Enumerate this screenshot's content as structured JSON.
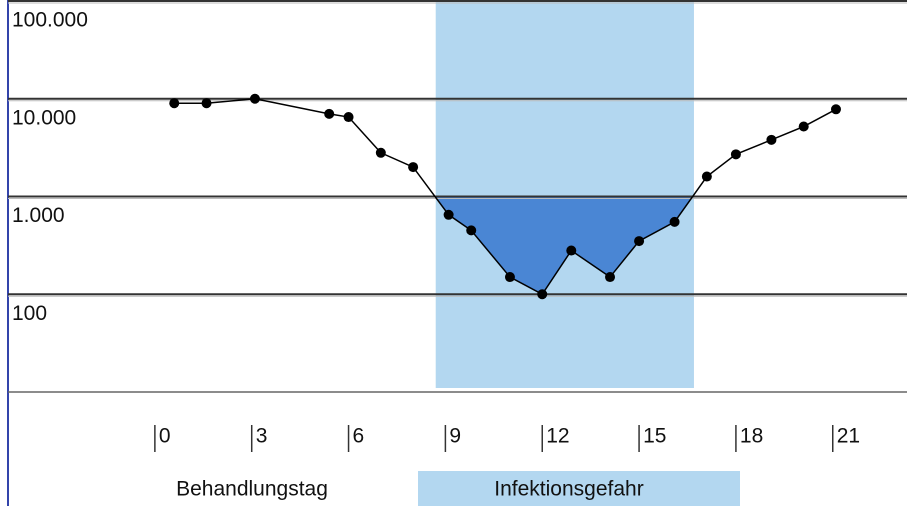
{
  "chart_data": {
    "type": "line",
    "x_label": "Behandlungstag",
    "highlight_label": "Infektionsgefahr",
    "highlight": [
      8.7,
      16.7
    ],
    "highlight_color": "#b3d7f0",
    "fill_below": 1000,
    "fill_color": "#4a86d4",
    "log_y": true,
    "grid": true,
    "xlim": [
      -4.55,
      23.3
    ],
    "xticks": [
      0,
      3,
      6,
      9,
      12,
      15,
      18,
      21
    ],
    "ylim": [
      10,
      100000
    ],
    "yticks": [
      {
        "value": 100000,
        "label": "100.000"
      },
      {
        "value": 10000,
        "label": "10.000"
      },
      {
        "value": 1000,
        "label": "1.000"
      },
      100
    ],
    "x": [
      0.6,
      1.6,
      3.1,
      5.4,
      6.0,
      7.0,
      8.0,
      9.1,
      9.8,
      11.0,
      12.0,
      12.9,
      14.1,
      15.0,
      16.1,
      17.1,
      18.0,
      19.1,
      20.1,
      21.1
    ],
    "series": [
      {
        "color": "#000000",
        "values": [
          9000,
          9000,
          10000,
          7000,
          6500,
          2800,
          2000,
          650,
          450,
          150,
          100,
          280,
          150,
          350,
          550,
          1600,
          2700,
          3800,
          5200,
          7800
        ]
      }
    ]
  }
}
